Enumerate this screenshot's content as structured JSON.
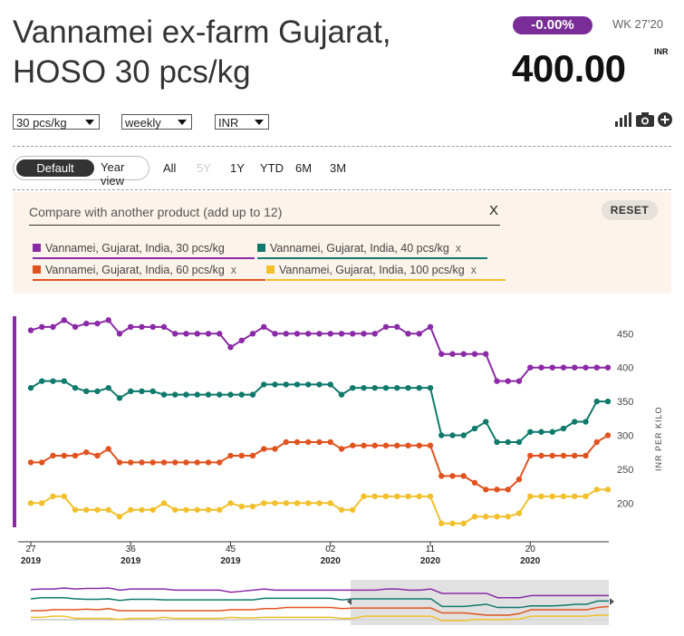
{
  "header": {
    "title_line1": "Vannamei ex-farm Gujarat,",
    "title_line2": "HOSO 30 pcs/kg",
    "change_badge": "-0.00%",
    "week_label": "WK 27'20",
    "price": "400.00",
    "currency": "INR"
  },
  "controls": {
    "size_select": "30 pcs/kg",
    "period_select": "weekly",
    "currency_select": "INR",
    "view_default": "Default",
    "view_yearview": "Year view",
    "ranges": [
      "All",
      "5Y",
      "1Y",
      "YTD",
      "6M",
      "3M"
    ],
    "tools": [
      "bar-chart-icon",
      "camera-icon",
      "plus-circle-icon"
    ]
  },
  "compare": {
    "placeholder": "Compare with another product (add up to 12)",
    "clear": "X",
    "reset": "RESET",
    "remove": "x"
  },
  "colors": {
    "s30": "#8b2aa6",
    "s40": "#0f7a6b",
    "s60": "#e0531f",
    "s100": "#f2c02c"
  },
  "chart_data": {
    "type": "line",
    "ylabel": "INR PER KILO",
    "yticks": [
      200,
      250,
      300,
      350,
      400,
      450
    ],
    "ylim": [
      170,
      478
    ],
    "x_ticks": [
      {
        "week": "27",
        "year": "2019"
      },
      {
        "week": "36",
        "year": "2019"
      },
      {
        "week": "45",
        "year": "2019"
      },
      {
        "week": "02",
        "year": "2020"
      },
      {
        "week": "11",
        "year": "2020"
      },
      {
        "week": "20",
        "year": "2020"
      }
    ],
    "x": [
      "2019-W27",
      "2019-W28",
      "2019-W29",
      "2019-W30",
      "2019-W31",
      "2019-W32",
      "2019-W33",
      "2019-W34",
      "2019-W35",
      "2019-W36",
      "2019-W37",
      "2019-W38",
      "2019-W39",
      "2019-W40",
      "2019-W41",
      "2019-W42",
      "2019-W43",
      "2019-W44",
      "2019-W45",
      "2019-W46",
      "2019-W47",
      "2019-W48",
      "2019-W49",
      "2019-W50",
      "2019-W51",
      "2019-W52",
      "2020-W01",
      "2020-W02",
      "2020-W03",
      "2020-W04",
      "2020-W05",
      "2020-W06",
      "2020-W07",
      "2020-W08",
      "2020-W09",
      "2020-W10",
      "2020-W11",
      "2020-W12",
      "2020-W13",
      "2020-W14",
      "2020-W15",
      "2020-W16",
      "2020-W17",
      "2020-W18",
      "2020-W19",
      "2020-W20",
      "2020-W21",
      "2020-W22",
      "2020-W23",
      "2020-W24",
      "2020-W25",
      "2020-W26",
      "2020-W27"
    ],
    "series": [
      {
        "name": "Vannamei, Gujarat, India, 30 pcs/kg",
        "color_key": "s30",
        "values": [
          455,
          460,
          460,
          470,
          460,
          465,
          465,
          470,
          450,
          460,
          460,
          460,
          460,
          450,
          450,
          450,
          450,
          450,
          430,
          440,
          450,
          460,
          450,
          450,
          450,
          450,
          450,
          450,
          450,
          450,
          450,
          450,
          460,
          460,
          450,
          450,
          460,
          420,
          420,
          420,
          420,
          420,
          380,
          380,
          380,
          400,
          400,
          400,
          400,
          400,
          400,
          400,
          400
        ]
      },
      {
        "name": "Vannamei, Gujarat, India, 40 pcs/kg",
        "color_key": "s40",
        "values": [
          370,
          380,
          380,
          380,
          370,
          365,
          365,
          370,
          355,
          365,
          365,
          365,
          360,
          360,
          360,
          360,
          360,
          360,
          360,
          360,
          360,
          375,
          375,
          375,
          375,
          375,
          375,
          375,
          360,
          370,
          370,
          370,
          370,
          370,
          370,
          370,
          370,
          300,
          300,
          300,
          310,
          320,
          290,
          290,
          290,
          305,
          305,
          305,
          310,
          320,
          320,
          350,
          350
        ]
      },
      {
        "name": "Vannamei, Gujarat, India, 60 pcs/kg",
        "color_key": "s60",
        "values": [
          260,
          260,
          270,
          270,
          270,
          275,
          270,
          280,
          260,
          260,
          260,
          260,
          260,
          260,
          260,
          260,
          260,
          260,
          270,
          270,
          270,
          280,
          280,
          290,
          290,
          290,
          290,
          290,
          280,
          285,
          285,
          285,
          285,
          285,
          285,
          285,
          285,
          240,
          240,
          240,
          230,
          220,
          220,
          220,
          235,
          270,
          270,
          270,
          270,
          270,
          270,
          290,
          300
        ]
      },
      {
        "name": "Vannamei, Gujarat, India, 100 pcs/kg",
        "color_key": "s100",
        "values": [
          200,
          200,
          210,
          210,
          190,
          190,
          190,
          190,
          180,
          190,
          190,
          190,
          200,
          190,
          190,
          190,
          190,
          190,
          200,
          195,
          195,
          200,
          200,
          200,
          200,
          200,
          200,
          200,
          190,
          190,
          210,
          210,
          210,
          210,
          210,
          210,
          210,
          170,
          170,
          170,
          180,
          180,
          180,
          180,
          185,
          210,
          210,
          210,
          210,
          210,
          210,
          220,
          220
        ]
      }
    ]
  }
}
